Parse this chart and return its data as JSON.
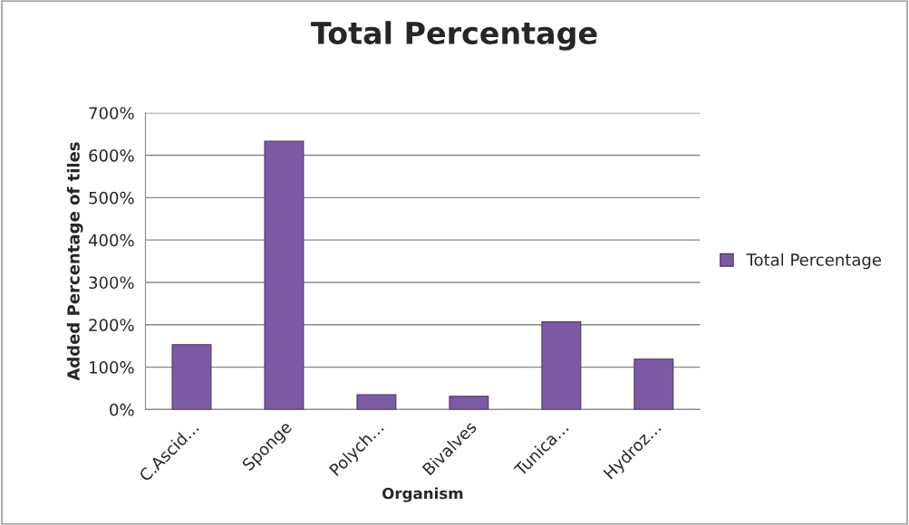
{
  "chart_data": {
    "type": "bar",
    "title": "Total Percentage",
    "xlabel": "Organism",
    "ylabel": "Added Percentage of tiles",
    "categories": [
      "C.Ascid…",
      "Sponge",
      "Polych…",
      "Bivalves",
      "Tunica…",
      "Hydroz…"
    ],
    "series": [
      {
        "name": "Total Percentage",
        "color": "#7b5aa6",
        "values": [
          153,
          633,
          35,
          31,
          207,
          119
        ]
      }
    ],
    "ylim": [
      0,
      700
    ],
    "yticks": [
      {
        "value": 0,
        "label": "0%"
      },
      {
        "value": 100,
        "label": "100%"
      },
      {
        "value": 200,
        "label": "200%"
      },
      {
        "value": 300,
        "label": "300%"
      },
      {
        "value": 400,
        "label": "400%"
      },
      {
        "value": 500,
        "label": "500%"
      },
      {
        "value": 600,
        "label": "600%"
      },
      {
        "value": 700,
        "label": "700%"
      }
    ],
    "grid": "y",
    "legend": "right"
  }
}
